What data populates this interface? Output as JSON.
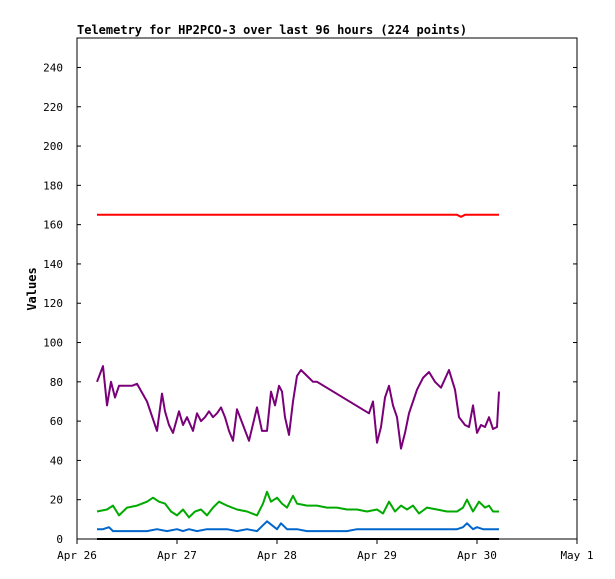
{
  "chart_data": {
    "type": "line",
    "title": "Telemetry for HP2PCO-3 over last 96 hours (224 points)",
    "xlabel": "",
    "ylabel": "Values",
    "x_ticks": [
      "Apr 26",
      "Apr 27",
      "Apr 28",
      "Apr 29",
      "Apr 30",
      "May 1"
    ],
    "x_range_days": [
      26,
      31
    ],
    "ylim": [
      0,
      255
    ],
    "y_ticks": [
      0,
      20,
      40,
      60,
      80,
      100,
      120,
      140,
      160,
      180,
      200,
      220,
      240
    ],
    "grid": false,
    "legend": "none",
    "series": [
      {
        "color": "#ff0000",
        "x": [
          26.2,
          29.8,
          29.84,
          29.88,
          30.22
        ],
        "y": [
          165,
          165,
          164,
          165,
          165
        ]
      },
      {
        "color": "#7a007a",
        "x": [
          26.2,
          26.26,
          26.3,
          26.34,
          26.38,
          26.42,
          26.46,
          26.5,
          26.55,
          26.6,
          26.7,
          26.8,
          26.85,
          26.88,
          26.92,
          26.96,
          27.02,
          27.06,
          27.1,
          27.16,
          27.2,
          27.24,
          27.28,
          27.32,
          27.36,
          27.4,
          27.44,
          27.48,
          27.52,
          27.56,
          27.6,
          27.66,
          27.72,
          27.8,
          27.85,
          27.9,
          27.94,
          27.98,
          28.02,
          28.05,
          28.08,
          28.12,
          28.16,
          28.2,
          28.24,
          28.3,
          28.36,
          28.4,
          28.92,
          28.96,
          29.0,
          29.04,
          29.08,
          29.12,
          29.16,
          29.2,
          29.24,
          29.28,
          29.32,
          29.36,
          29.4,
          29.46,
          29.52,
          29.58,
          29.64,
          29.72,
          29.78,
          29.82,
          29.88,
          29.92,
          29.96,
          30.0,
          30.04,
          30.08,
          30.12,
          30.16,
          30.2,
          30.22
        ],
        "y": [
          80,
          88,
          68,
          80,
          72,
          78,
          78,
          78,
          78,
          79,
          70,
          55,
          74,
          65,
          58,
          54,
          65,
          58,
          62,
          55,
          64,
          60,
          62,
          65,
          62,
          64,
          67,
          62,
          55,
          50,
          66,
          58,
          50,
          67,
          55,
          55,
          75,
          68,
          78,
          75,
          62,
          53,
          70,
          83,
          86,
          83,
          80,
          80,
          64,
          70,
          49,
          57,
          72,
          78,
          68,
          62,
          46,
          54,
          64,
          70,
          76,
          82,
          85,
          80,
          77,
          86,
          76,
          62,
          58,
          57,
          68,
          54,
          58,
          57,
          62,
          56,
          57,
          75
        ]
      },
      {
        "color": "#00aa00",
        "x": [
          26.2,
          26.3,
          26.36,
          26.42,
          26.5,
          26.6,
          26.7,
          26.76,
          26.82,
          26.88,
          26.94,
          27.0,
          27.06,
          27.12,
          27.18,
          27.24,
          27.3,
          27.36,
          27.42,
          27.5,
          27.6,
          27.7,
          27.8,
          27.86,
          27.9,
          27.94,
          28.0,
          28.05,
          28.1,
          28.16,
          28.2,
          28.3,
          28.4,
          28.5,
          28.6,
          28.7,
          28.8,
          28.9,
          29.0,
          29.06,
          29.12,
          29.18,
          29.24,
          29.3,
          29.36,
          29.42,
          29.5,
          29.6,
          29.7,
          29.8,
          29.86,
          29.9,
          29.96,
          30.02,
          30.08,
          30.12,
          30.16,
          30.22
        ],
        "y": [
          14,
          15,
          17,
          12,
          16,
          17,
          19,
          21,
          19,
          18,
          14,
          12,
          15,
          11,
          14,
          15,
          12,
          16,
          19,
          17,
          15,
          14,
          12,
          18,
          24,
          19,
          21,
          18,
          16,
          22,
          18,
          17,
          17,
          16,
          16,
          15,
          15,
          14,
          15,
          13,
          19,
          14,
          17,
          15,
          17,
          13,
          16,
          15,
          14,
          14,
          16,
          20,
          14,
          19,
          16,
          17,
          14,
          14
        ]
      },
      {
        "color": "#0066cc",
        "x": [
          26.2,
          26.26,
          26.32,
          26.36,
          26.4,
          26.5,
          26.6,
          26.7,
          26.8,
          26.9,
          27.0,
          27.06,
          27.12,
          27.2,
          27.3,
          27.4,
          27.5,
          27.6,
          27.7,
          27.8,
          27.84,
          27.9,
          28.0,
          28.04,
          28.1,
          28.2,
          28.3,
          28.4,
          28.5,
          28.6,
          28.7,
          28.8,
          28.9,
          29.0,
          29.1,
          29.2,
          29.3,
          29.4,
          29.5,
          29.6,
          29.7,
          29.8,
          29.86,
          29.9,
          29.96,
          30.0,
          30.06,
          30.12,
          30.18,
          30.22
        ],
        "y": [
          5,
          5,
          6,
          4,
          4,
          4,
          4,
          4,
          5,
          4,
          5,
          4,
          5,
          4,
          5,
          5,
          5,
          4,
          5,
          4,
          6,
          9,
          5,
          8,
          5,
          5,
          4,
          4,
          4,
          4,
          4,
          5,
          5,
          5,
          5,
          5,
          5,
          5,
          5,
          5,
          5,
          5,
          6,
          8,
          5,
          6,
          5,
          5,
          5,
          5
        ]
      },
      {
        "color": "#000000",
        "x": [
          26.2,
          30.22
        ],
        "y": [
          0,
          0
        ]
      }
    ]
  }
}
